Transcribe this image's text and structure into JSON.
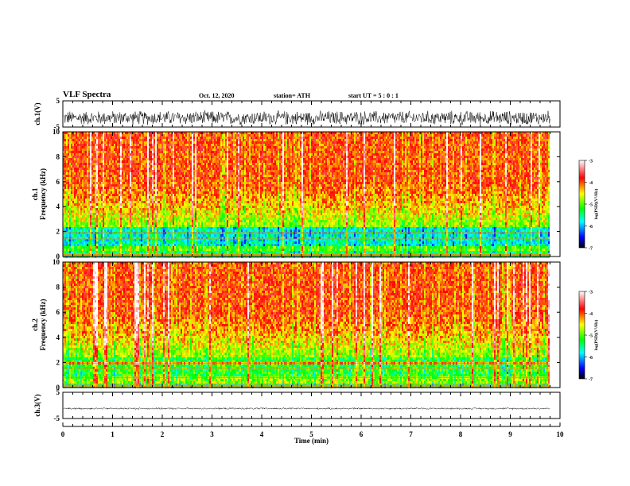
{
  "header": {
    "title": "VLF Spectra",
    "date": "Oct. 12, 2020",
    "station": "station= ATH",
    "start": "start  UT  =   5  : 0   : 1"
  },
  "chart_data": [
    {
      "type": "line",
      "name": "waveform-ch1",
      "ylabel": "ch.1(V)",
      "ylim": [
        -5,
        5
      ],
      "yticks": [
        5,
        -5
      ],
      "xlim": [
        0,
        10
      ],
      "description_values": {
        "baseline_v": -1.5,
        "spread_v": 2.5
      }
    },
    {
      "type": "heatmap",
      "name": "spectrogram-ch1",
      "ylabel_line1": "ch.1",
      "ylabel_line2": "Frequency (kHz)",
      "ylim": [
        0,
        10
      ],
      "yticks": [
        0,
        2,
        4,
        6,
        8,
        10
      ],
      "xlim": [
        0,
        10
      ],
      "data_end_min": 9.8,
      "colorbar": {
        "label": "log(PSD)(V²/Hz)",
        "ticks": [
          -3,
          -4,
          -5,
          -6,
          -7
        ],
        "range": [
          -7,
          -3
        ]
      }
    },
    {
      "type": "heatmap",
      "name": "spectrogram-ch2",
      "ylabel_line1": "ch.2",
      "ylabel_line2": "Frequency (kHz)",
      "ylim": [
        0,
        10
      ],
      "yticks": [
        0,
        2,
        4,
        6,
        8,
        10
      ],
      "xlim": [
        0,
        10
      ],
      "data_end_min": 9.8,
      "colorbar": {
        "label": "log(PSD)(V²/Hz)",
        "ticks": [
          -3,
          -4,
          -5,
          -6,
          -7
        ],
        "range": [
          -7,
          -3
        ]
      }
    },
    {
      "type": "line",
      "name": "waveform-ch3",
      "ylabel": "ch.3(V)",
      "ylim": [
        -5,
        5
      ],
      "yticks": [
        5,
        -5
      ],
      "xlim": [
        0,
        10
      ],
      "xlabel": "Time  (min)",
      "xticks": [
        0,
        1,
        2,
        3,
        4,
        5,
        6,
        7,
        8,
        9,
        10
      ],
      "description_values": {
        "baseline_v": -1.2,
        "spread_v": 0.3
      }
    }
  ],
  "colors": {
    "axis": "#000000",
    "waveform": "#000000",
    "colormap": [
      "#000000",
      "#0000ff",
      "#00ffff",
      "#00ff00",
      "#ffff00",
      "#ff0000",
      "#ffffff"
    ]
  }
}
